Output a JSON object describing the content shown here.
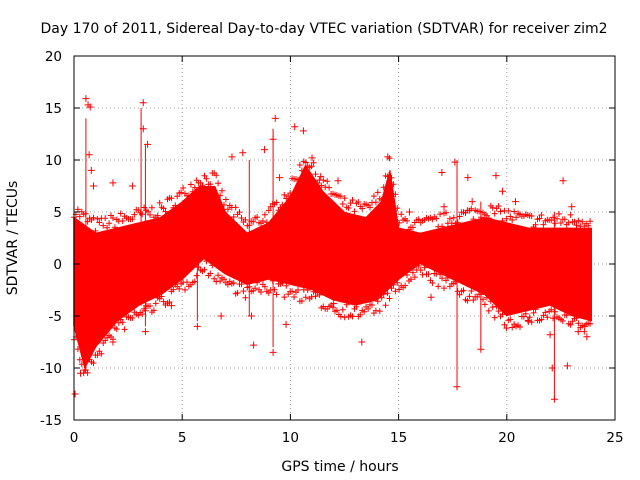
{
  "chart_data": {
    "type": "scatter",
    "title": "Day 170 of 2011, Sidereal Day-to-day VTEC variation (SDTVAR) for receiver zim2",
    "xlabel": "GPS time / hours",
    "ylabel": "SDTVAR / TECUs",
    "xlim": [
      0,
      25
    ],
    "ylim": [
      -15,
      20
    ],
    "xticks": [
      0,
      5,
      10,
      15,
      20,
      25
    ],
    "yticks": [
      -15,
      -10,
      -5,
      0,
      5,
      10,
      15,
      20
    ],
    "xtick_labels": [
      "0",
      "5",
      "10",
      "15",
      "20",
      "25"
    ],
    "ytick_labels": [
      "-15",
      "-10",
      "-5",
      "0",
      "5",
      "10",
      "15",
      "20"
    ],
    "grid": true,
    "marker": "+",
    "color": "#ff0000",
    "band_upper": [
      {
        "x": 0.0,
        "y": 4.5
      },
      {
        "x": 1.0,
        "y": 3.0
      },
      {
        "x": 2.0,
        "y": 3.5
      },
      {
        "x": 3.0,
        "y": 4.0
      },
      {
        "x": 4.0,
        "y": 4.5
      },
      {
        "x": 5.0,
        "y": 6.0
      },
      {
        "x": 5.8,
        "y": 7.5
      },
      {
        "x": 6.5,
        "y": 7.5
      },
      {
        "x": 7.0,
        "y": 5.0
      },
      {
        "x": 8.0,
        "y": 3.0
      },
      {
        "x": 9.0,
        "y": 4.0
      },
      {
        "x": 10.0,
        "y": 6.5
      },
      {
        "x": 10.7,
        "y": 9.5
      },
      {
        "x": 11.5,
        "y": 7.0
      },
      {
        "x": 12.5,
        "y": 5.0
      },
      {
        "x": 13.5,
        "y": 4.5
      },
      {
        "x": 14.2,
        "y": 6.0
      },
      {
        "x": 14.6,
        "y": 9.0
      },
      {
        "x": 15.0,
        "y": 3.5
      },
      {
        "x": 16.0,
        "y": 3.0
      },
      {
        "x": 17.0,
        "y": 3.5
      },
      {
        "x": 18.0,
        "y": 4.0
      },
      {
        "x": 19.0,
        "y": 4.5
      },
      {
        "x": 20.0,
        "y": 4.0
      },
      {
        "x": 21.0,
        "y": 3.5
      },
      {
        "x": 22.0,
        "y": 3.5
      },
      {
        "x": 23.0,
        "y": 3.5
      },
      {
        "x": 23.9,
        "y": 3.5
      }
    ],
    "band_lower": [
      {
        "x": 0.0,
        "y": -6.0
      },
      {
        "x": 0.5,
        "y": -10.0
      },
      {
        "x": 1.0,
        "y": -8.0
      },
      {
        "x": 2.0,
        "y": -5.5
      },
      {
        "x": 3.0,
        "y": -4.0
      },
      {
        "x": 4.0,
        "y": -3.0
      },
      {
        "x": 5.0,
        "y": -1.5
      },
      {
        "x": 6.0,
        "y": 0.5
      },
      {
        "x": 7.0,
        "y": -1.0
      },
      {
        "x": 8.0,
        "y": -2.0
      },
      {
        "x": 9.0,
        "y": -1.5
      },
      {
        "x": 10.0,
        "y": -2.0
      },
      {
        "x": 11.0,
        "y": -2.5
      },
      {
        "x": 12.0,
        "y": -3.5
      },
      {
        "x": 13.0,
        "y": -4.0
      },
      {
        "x": 14.0,
        "y": -3.5
      },
      {
        "x": 15.0,
        "y": -1.5
      },
      {
        "x": 16.0,
        "y": 0.0
      },
      {
        "x": 17.0,
        "y": -1.0
      },
      {
        "x": 18.0,
        "y": -2.0
      },
      {
        "x": 19.0,
        "y": -3.0
      },
      {
        "x": 20.0,
        "y": -5.0
      },
      {
        "x": 21.0,
        "y": -4.5
      },
      {
        "x": 22.0,
        "y": -4.0
      },
      {
        "x": 23.0,
        "y": -5.0
      },
      {
        "x": 23.9,
        "y": -5.5
      }
    ],
    "outliers": [
      {
        "x": 0.05,
        "y": -12.5
      },
      {
        "x": 0.55,
        "y": 15.9
      },
      {
        "x": 0.65,
        "y": 15.3
      },
      {
        "x": 0.75,
        "y": 15.1
      },
      {
        "x": 0.7,
        "y": 10.5
      },
      {
        "x": 0.8,
        "y": 9.0
      },
      {
        "x": 0.9,
        "y": 7.5
      },
      {
        "x": 0.3,
        "y": -10.5
      },
      {
        "x": 0.5,
        "y": -10.2
      },
      {
        "x": 1.8,
        "y": 7.8
      },
      {
        "x": 2.7,
        "y": 7.5
      },
      {
        "x": 3.2,
        "y": 15.5
      },
      {
        "x": 3.2,
        "y": 13.0
      },
      {
        "x": 3.3,
        "y": -6.5
      },
      {
        "x": 3.3,
        "y": -4.5
      },
      {
        "x": 3.4,
        "y": 11.5
      },
      {
        "x": 1.8,
        "y": -7.5
      },
      {
        "x": 7.3,
        "y": 10.3
      },
      {
        "x": 7.8,
        "y": 10.7
      },
      {
        "x": 6.8,
        "y": -5.0
      },
      {
        "x": 5.7,
        "y": -6.0
      },
      {
        "x": 8.3,
        "y": -7.8
      },
      {
        "x": 8.8,
        "y": 11.0
      },
      {
        "x": 9.2,
        "y": 12.0
      },
      {
        "x": 9.2,
        "y": -8.5
      },
      {
        "x": 9.3,
        "y": 14.0
      },
      {
        "x": 9.5,
        "y": 8.3
      },
      {
        "x": 9.8,
        "y": -5.8
      },
      {
        "x": 10.2,
        "y": 13.2
      },
      {
        "x": 10.6,
        "y": 12.8
      },
      {
        "x": 11.0,
        "y": 10.2
      },
      {
        "x": 11.4,
        "y": 8.4
      },
      {
        "x": 12.0,
        "y": -3.8
      },
      {
        "x": 13.3,
        "y": -7.5
      },
      {
        "x": 14.5,
        "y": 10.3
      },
      {
        "x": 16.5,
        "y": -3.2
      },
      {
        "x": 17.0,
        "y": 8.8
      },
      {
        "x": 17.6,
        "y": 9.8
      },
      {
        "x": 17.7,
        "y": -11.8
      },
      {
        "x": 17.1,
        "y": 5.5
      },
      {
        "x": 18.2,
        "y": 8.3
      },
      {
        "x": 18.4,
        "y": 6.0
      },
      {
        "x": 18.8,
        "y": -8.2
      },
      {
        "x": 19.5,
        "y": 8.5
      },
      {
        "x": 19.8,
        "y": 7.0
      },
      {
        "x": 20.4,
        "y": 6.0
      },
      {
        "x": 21.0,
        "y": -5.5
      },
      {
        "x": 22.0,
        "y": -6.8
      },
      {
        "x": 22.1,
        "y": -10.0
      },
      {
        "x": 22.2,
        "y": -13.0
      },
      {
        "x": 22.6,
        "y": 8.0
      },
      {
        "x": 22.8,
        "y": -9.8
      },
      {
        "x": 23.0,
        "y": 5.5
      },
      {
        "x": 23.3,
        "y": -6.5
      },
      {
        "x": 23.6,
        "y": -6.0
      },
      {
        "x": 23.7,
        "y": -7.0
      },
      {
        "x": 8.2,
        "y": -5.0
      },
      {
        "x": 4.5,
        "y": -4.0
      },
      {
        "x": 12.2,
        "y": 8.0
      },
      {
        "x": 15.5,
        "y": 5.0
      }
    ],
    "spikes": [
      {
        "x": 0.55,
        "ymin": -10.0,
        "ymax": 14.0
      },
      {
        "x": 3.1,
        "ymin": -4.0,
        "ymax": 15.0
      },
      {
        "x": 3.3,
        "ymin": -6.0,
        "ymax": 11.5
      },
      {
        "x": 5.7,
        "ymin": -5.5,
        "ymax": 7.0
      },
      {
        "x": 8.1,
        "ymin": -5.0,
        "ymax": 10.0
      },
      {
        "x": 9.2,
        "ymin": -8.0,
        "ymax": 13.0
      },
      {
        "x": 17.7,
        "ymin": -11.5,
        "ymax": 10.0
      },
      {
        "x": 18.8,
        "ymin": -8.0,
        "ymax": 6.0
      },
      {
        "x": 22.2,
        "ymin": -13.0,
        "ymax": 5.0
      }
    ]
  }
}
